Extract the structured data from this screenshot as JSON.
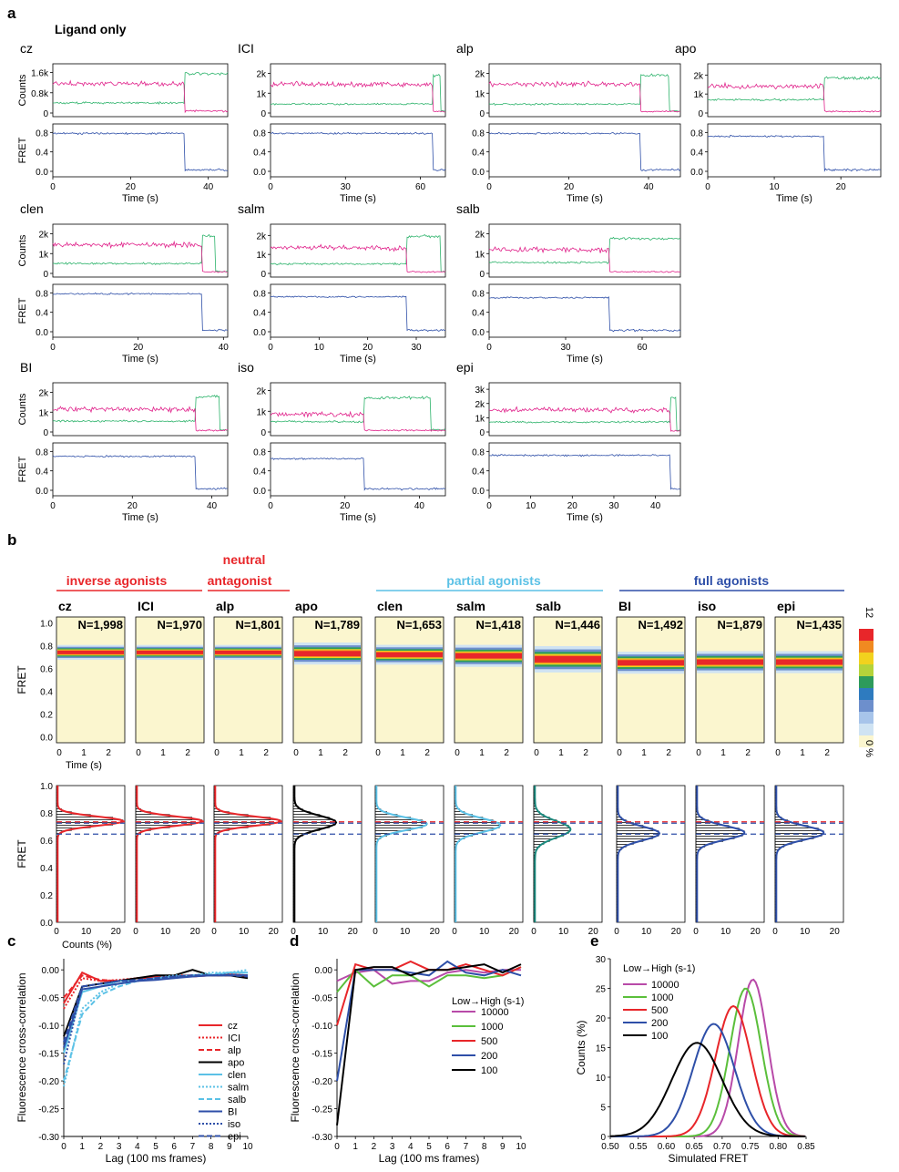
{
  "panel_letters": {
    "a": "a",
    "b": "b",
    "c": "c",
    "d": "d",
    "e": "e"
  },
  "panel_a": {
    "heading": "Ligand only",
    "counts_label": "Counts",
    "fret_label": "FRET",
    "time_label": "Time (s)",
    "colors": {
      "acceptor": "#e0218a",
      "donor": "#2db36b",
      "fret": "#2e4fa8"
    },
    "traces": [
      {
        "name": "cz",
        "t_max": 45,
        "bleach_t": 34,
        "fret_level": 0.78,
        "x_ticks": [
          "0",
          "20",
          "40"
        ],
        "x_tick_values": [
          0,
          20,
          40
        ],
        "count_ticks": [
          "0",
          "0.8k",
          "1.6k"
        ],
        "count_tick_values": [
          0,
          800,
          1600
        ],
        "count_max": 1800,
        "acceptor_level": 1150,
        "donor_level": 400,
        "donor_post": 1550,
        "donor_end": 45
      },
      {
        "name": "ICI",
        "t_max": 70,
        "bleach_t": 65,
        "fret_level": 0.78,
        "x_ticks": [
          "0",
          "30",
          "60"
        ],
        "x_tick_values": [
          0,
          30,
          60
        ],
        "count_ticks": [
          "0",
          "1k",
          "2k"
        ],
        "count_tick_values": [
          0,
          1000,
          2000
        ],
        "count_max": 2300,
        "acceptor_level": 1450,
        "donor_level": 450,
        "donor_post": 1900,
        "donor_end": 68
      },
      {
        "name": "alp",
        "t_max": 48,
        "bleach_t": 38,
        "fret_level": 0.78,
        "x_ticks": [
          "0",
          "20",
          "40"
        ],
        "x_tick_values": [
          0,
          20,
          40
        ],
        "count_ticks": [
          "0",
          "1k",
          "2k"
        ],
        "count_tick_values": [
          0,
          1000,
          2000
        ],
        "count_max": 2300,
        "acceptor_level": 1450,
        "donor_level": 450,
        "donor_post": 1900,
        "donor_end": 45
      },
      {
        "name": "apo",
        "t_max": 26,
        "bleach_t": 17.5,
        "fret_level": 0.72,
        "x_ticks": [
          "0",
          "10",
          "20"
        ],
        "x_tick_values": [
          0,
          10,
          20
        ],
        "count_ticks": [
          "0",
          "1k",
          "2k"
        ],
        "count_tick_values": [
          0,
          1000,
          2000
        ],
        "count_max": 2400,
        "acceptor_level": 1400,
        "donor_level": 700,
        "donor_post": 1850,
        "donor_end": 26
      },
      {
        "name": "clen",
        "t_max": 41,
        "bleach_t": 35,
        "fret_level": 0.78,
        "x_ticks": [
          "0",
          "20",
          "40"
        ],
        "x_tick_values": [
          0,
          20,
          40
        ],
        "count_ticks": [
          "0",
          "1k",
          "2k"
        ],
        "count_tick_values": [
          0,
          1000,
          2000
        ],
        "count_max": 2300,
        "acceptor_level": 1450,
        "donor_level": 500,
        "donor_post": 1900,
        "donor_end": 38
      },
      {
        "name": "salm",
        "t_max": 36,
        "bleach_t": 28,
        "fret_level": 0.72,
        "x_ticks": [
          "0",
          "10",
          "20",
          "30"
        ],
        "x_tick_values": [
          0,
          10,
          20,
          30
        ],
        "count_ticks": [
          "0",
          "1k",
          "2k"
        ],
        "count_tick_values": [
          0,
          1000,
          2000
        ],
        "count_max": 2400,
        "acceptor_level": 1350,
        "donor_level": 500,
        "donor_post": 1950,
        "donor_end": 35
      },
      {
        "name": "salb",
        "t_max": 75,
        "bleach_t": 47,
        "fret_level": 0.7,
        "x_ticks": [
          "0",
          "30",
          "60"
        ],
        "x_tick_values": [
          0,
          30,
          60
        ],
        "count_ticks": [
          "0",
          "1k",
          "2k"
        ],
        "count_tick_values": [
          0,
          1000,
          2000
        ],
        "count_max": 2300,
        "acceptor_level": 1200,
        "donor_level": 550,
        "donor_post": 1750,
        "donor_end": 75
      },
      {
        "name": "BI",
        "t_max": 44,
        "bleach_t": 36,
        "fret_level": 0.7,
        "x_ticks": [
          "0",
          "20",
          "40"
        ],
        "x_tick_values": [
          0,
          20,
          40
        ],
        "count_ticks": [
          "0",
          "1k",
          "2k"
        ],
        "count_tick_values": [
          0,
          1000,
          2000
        ],
        "count_max": 2300,
        "acceptor_level": 1150,
        "donor_level": 550,
        "donor_post": 1800,
        "donor_end": 42
      },
      {
        "name": "iso",
        "t_max": 47,
        "bleach_t": 25,
        "fret_level": 0.65,
        "x_ticks": [
          "0",
          "20",
          "40"
        ],
        "x_tick_values": [
          0,
          20,
          40
        ],
        "count_ticks": [
          "0",
          "1k",
          "2k"
        ],
        "count_tick_values": [
          0,
          1000,
          2000
        ],
        "count_max": 2200,
        "acceptor_level": 850,
        "donor_level": 500,
        "donor_post": 1650,
        "donor_end": 43
      },
      {
        "name": "epi",
        "t_max": 46,
        "bleach_t": 43.5,
        "fret_level": 0.72,
        "x_ticks": [
          "0",
          "10",
          "20",
          "30",
          "40"
        ],
        "x_tick_values": [
          0,
          10,
          20,
          30,
          40
        ],
        "count_ticks": [
          "0",
          "1k",
          "2k",
          "3k"
        ],
        "count_tick_values": [
          0,
          1000,
          2000,
          3000
        ],
        "count_max": 3200,
        "acceptor_level": 1550,
        "donor_level": 700,
        "donor_post": 2400,
        "donor_end": 45
      }
    ]
  },
  "panel_b": {
    "groups": [
      {
        "label": "inverse agonists",
        "color": "#e8262a"
      },
      {
        "label": "neutral",
        "color": "#e8262a"
      },
      {
        "label": "antagonist",
        "color": "#e8262a"
      },
      {
        "label": "partial agonists",
        "color": "#5bc1e6"
      },
      {
        "label": "full agonists",
        "color": "#2e4fa8"
      }
    ],
    "heatmap_ylabel": "FRET",
    "heatmap_xlabel": "Time (s)",
    "hist_ylabel": "FRET",
    "hist_xlabel": "Counts (%)",
    "colorbar_top": "12",
    "colorbar_bottom": "0 %",
    "ref_lines": [
      {
        "fret": 0.735,
        "color": "#e8262a"
      },
      {
        "fret": 0.725,
        "color": "#2e4fa8"
      },
      {
        "fret": 0.645,
        "color": "#2e4fa8"
      }
    ],
    "ligands": [
      {
        "name": "cz",
        "n": "N=1,998",
        "center": 0.74,
        "width": 0.034,
        "peak": 22,
        "fit_color": "#e8262a"
      },
      {
        "name": "ICI",
        "n": "N=1,970",
        "center": 0.74,
        "width": 0.034,
        "peak": 22,
        "fit_color": "#e8262a"
      },
      {
        "name": "alp",
        "n": "N=1,801",
        "center": 0.74,
        "width": 0.034,
        "peak": 22,
        "fit_color": "#e8262a"
      },
      {
        "name": "apo",
        "n": "N=1,789",
        "center": 0.73,
        "width": 0.05,
        "peak": 14,
        "fit_color": "#000000"
      },
      {
        "name": "clen",
        "n": "N=1,653",
        "center": 0.72,
        "width": 0.045,
        "peak": 17,
        "fit_color": "#5bc1e6"
      },
      {
        "name": "salm",
        "n": "N=1,418",
        "center": 0.71,
        "width": 0.05,
        "peak": 15,
        "fit_color": "#5bc1e6"
      },
      {
        "name": "salb",
        "n": "N=1,446",
        "center": 0.68,
        "width": 0.06,
        "peak": 12,
        "fit_color": "#1a8a7e"
      },
      {
        "name": "BI",
        "n": "N=1,492",
        "center": 0.65,
        "width": 0.05,
        "peak": 14,
        "fit_color": "#2e4fa8"
      },
      {
        "name": "iso",
        "n": "N=1,879",
        "center": 0.655,
        "width": 0.05,
        "peak": 16,
        "fit_color": "#2e4fa8"
      },
      {
        "name": "epi",
        "n": "N=1,435",
        "center": 0.655,
        "width": 0.05,
        "peak": 16,
        "fit_color": "#2e4fa8"
      }
    ]
  },
  "chart_data": [
    {
      "type": "line",
      "panel": "c",
      "xlabel": "Lag (100 ms frames)",
      "ylabel": "Fluorescence cross-correlation",
      "xlim": [
        0,
        10
      ],
      "ylim": [
        -0.3,
        0.02
      ],
      "x": [
        0,
        1,
        2,
        3,
        4,
        5,
        6,
        7,
        8,
        9,
        10
      ],
      "legend_position": "right",
      "series": [
        {
          "name": "cz",
          "color": "#e8262a",
          "dash": "solid",
          "values": [
            -0.06,
            -0.005,
            -0.02,
            -0.02,
            -0.015,
            -0.012,
            -0.01,
            -0.01,
            -0.01,
            -0.008,
            -0.01
          ]
        },
        {
          "name": "ICI",
          "color": "#e8262a",
          "dash": "dot",
          "values": [
            -0.07,
            -0.015,
            -0.02,
            -0.018,
            -0.015,
            -0.012,
            -0.012,
            -0.01,
            -0.01,
            -0.01,
            -0.012
          ]
        },
        {
          "name": "alp",
          "color": "#e8262a",
          "dash": "dash",
          "values": [
            -0.05,
            -0.01,
            -0.018,
            -0.02,
            -0.015,
            -0.015,
            -0.01,
            -0.012,
            -0.01,
            -0.01,
            -0.01
          ]
        },
        {
          "name": "apo",
          "color": "#000000",
          "dash": "solid",
          "values": [
            -0.12,
            -0.03,
            -0.025,
            -0.02,
            -0.015,
            -0.01,
            -0.01,
            0.0,
            -0.01,
            -0.01,
            -0.015
          ]
        },
        {
          "name": "clen",
          "color": "#5bc1e6",
          "dash": "solid",
          "values": [
            -0.15,
            -0.04,
            -0.03,
            -0.02,
            -0.02,
            -0.015,
            -0.015,
            -0.01,
            -0.01,
            -0.005,
            -0.005
          ]
        },
        {
          "name": "salm",
          "color": "#5bc1e6",
          "dash": "dot",
          "values": [
            -0.21,
            -0.07,
            -0.04,
            -0.025,
            -0.02,
            -0.015,
            -0.01,
            -0.01,
            -0.005,
            -0.005,
            0.0
          ]
        },
        {
          "name": "salb",
          "color": "#5bc1e6",
          "dash": "dash",
          "values": [
            -0.2,
            -0.08,
            -0.045,
            -0.03,
            -0.02,
            -0.015,
            -0.012,
            -0.01,
            -0.008,
            -0.005,
            -0.005
          ]
        },
        {
          "name": "BI",
          "color": "#2e4fa8",
          "dash": "solid",
          "values": [
            -0.14,
            -0.035,
            -0.03,
            -0.025,
            -0.02,
            -0.018,
            -0.015,
            -0.012,
            -0.01,
            -0.01,
            -0.01
          ]
        },
        {
          "name": "iso",
          "color": "#2e4fa8",
          "dash": "dot",
          "values": [
            -0.17,
            -0.03,
            -0.025,
            -0.02,
            -0.02,
            -0.015,
            -0.012,
            -0.01,
            -0.01,
            -0.008,
            -0.01
          ]
        },
        {
          "name": "epi",
          "color": "#2e4fa8",
          "dash": "dash",
          "values": [
            -0.13,
            -0.03,
            -0.025,
            -0.02,
            -0.018,
            -0.015,
            -0.012,
            -0.01,
            -0.01,
            -0.01,
            -0.012
          ]
        }
      ]
    },
    {
      "type": "line",
      "panel": "d",
      "xlabel": "Lag (100 ms frames)",
      "ylabel": "Fluorescence cross-correlation",
      "xlim": [
        0,
        10
      ],
      "ylim": [
        -0.3,
        0.02
      ],
      "x": [
        0,
        1,
        2,
        3,
        4,
        5,
        6,
        7,
        8,
        9,
        10
      ],
      "legend_title": "Low→High (s-1)",
      "legend_position": "right",
      "series": [
        {
          "name": "10000",
          "color": "#b84aa8",
          "values": [
            -0.02,
            -0.005,
            0.0,
            -0.025,
            -0.02,
            -0.02,
            -0.005,
            0.0,
            -0.005,
            0.0,
            0.0
          ]
        },
        {
          "name": "1000",
          "color": "#5bbf3b",
          "values": [
            -0.04,
            0.0,
            -0.03,
            -0.01,
            -0.01,
            -0.03,
            -0.01,
            -0.01,
            -0.015,
            -0.01,
            0.005
          ]
        },
        {
          "name": "500",
          "color": "#e8262a",
          "values": [
            -0.1,
            0.01,
            0.0,
            0.0,
            0.015,
            0.0,
            0.0,
            0.01,
            0.0,
            -0.01,
            0.005
          ]
        },
        {
          "name": "200",
          "color": "#2e4fa8",
          "values": [
            -0.2,
            0.0,
            0.0,
            0.0,
            -0.005,
            -0.01,
            0.015,
            -0.005,
            -0.01,
            0.0,
            -0.01
          ]
        },
        {
          "name": "100",
          "color": "#000000",
          "values": [
            -0.28,
            0.0,
            0.005,
            0.005,
            -0.01,
            0.0,
            0.0,
            0.005,
            0.01,
            -0.005,
            0.01
          ]
        }
      ]
    },
    {
      "type": "line",
      "panel": "e",
      "xlabel": "Simulated FRET",
      "ylabel": "Counts (%)",
      "xlim": [
        0.5,
        0.85
      ],
      "ylim": [
        0,
        30
      ],
      "legend_title": "Low→High (s-1)",
      "legend_position": "top-left",
      "x_ticks": [
        "0.50",
        "0.55",
        "0.60",
        "0.65",
        "0.70",
        "0.75",
        "0.80",
        "0.85"
      ],
      "y_ticks": [
        "0",
        "5",
        "10",
        "15",
        "20",
        "25",
        "30"
      ],
      "series": [
        {
          "name": "10000",
          "color": "#b84aa8",
          "center": 0.755,
          "sigma": 0.026,
          "peak": 26.5
        },
        {
          "name": "1000",
          "color": "#5bbf3b",
          "center": 0.742,
          "sigma": 0.028,
          "peak": 25.0
        },
        {
          "name": "500",
          "color": "#e8262a",
          "center": 0.72,
          "sigma": 0.032,
          "peak": 22.0
        },
        {
          "name": "200",
          "color": "#2e4fa8",
          "center": 0.685,
          "sigma": 0.037,
          "peak": 19.0
        },
        {
          "name": "100",
          "color": "#000000",
          "center": 0.655,
          "sigma": 0.045,
          "peak": 15.8
        }
      ]
    }
  ]
}
